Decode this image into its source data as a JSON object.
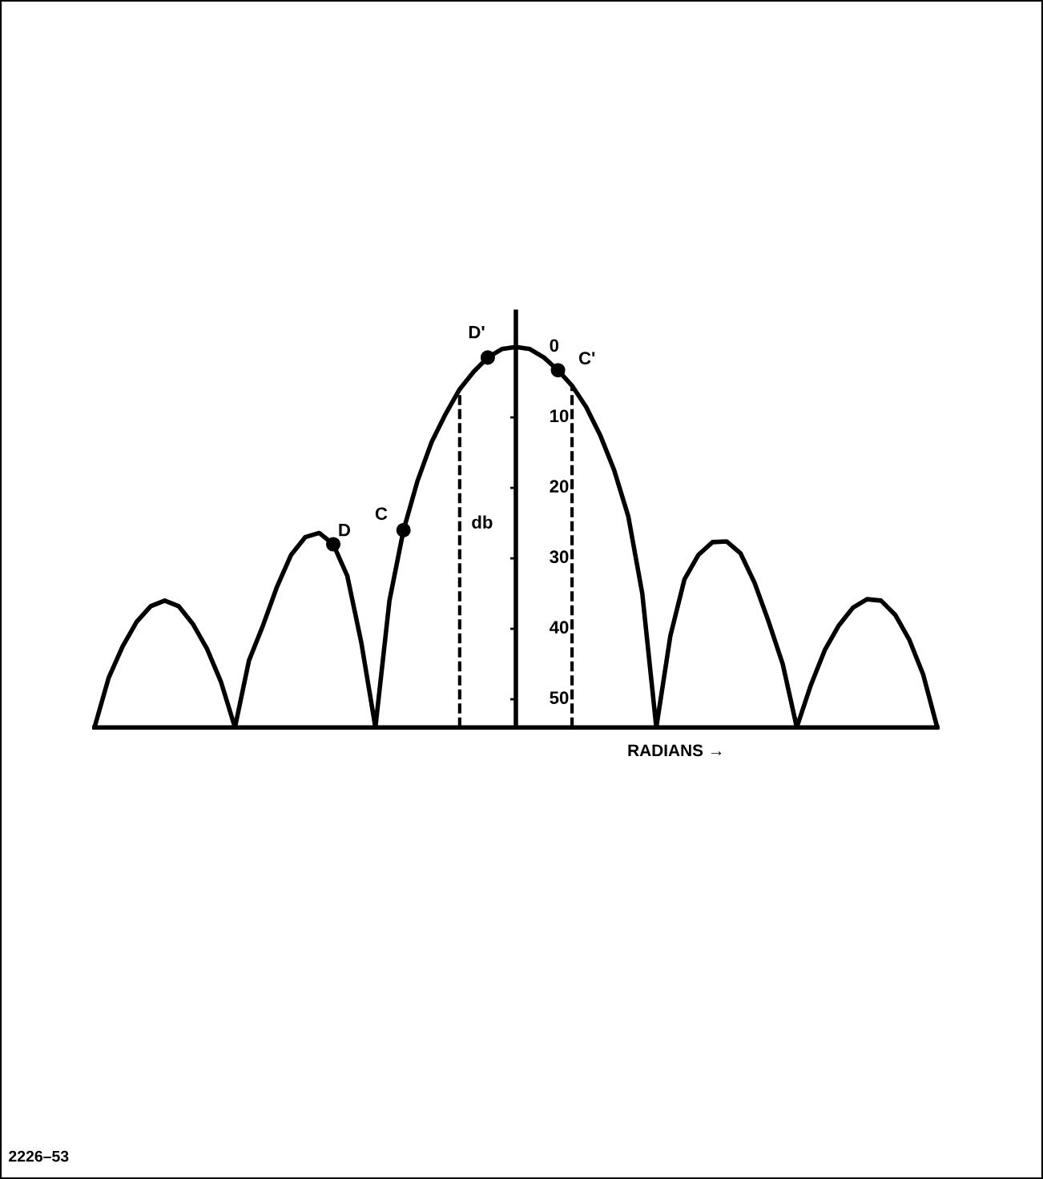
{
  "chart_data": {
    "type": "line",
    "xlabel": "RADIANS →",
    "ylabel": "db",
    "categories": [
      null,
      null,
      null,
      null,
      null,
      null,
      null,
      null,
      null,
      null,
      null,
      null,
      null,
      null,
      null,
      null,
      null,
      null,
      null,
      null,
      null,
      null,
      null,
      null,
      null,
      null,
      null,
      null,
      null,
      null,
      null,
      null,
      null,
      null,
      null,
      null,
      null,
      null,
      null,
      null,
      null,
      null,
      null,
      null,
      null,
      null,
      null,
      null,
      null,
      null,
      null,
      null,
      null,
      null,
      null,
      null,
      null,
      null,
      null,
      null,
      null
    ],
    "series": [
      {
        "color": "#000000",
        "values": [
          54,
          47,
          42.5,
          39,
          36.8,
          36,
          36.8,
          39.3,
          42.8,
          47.5,
          54,
          44.5,
          39.5,
          34,
          29.5,
          27,
          26.4,
          28,
          32.5,
          42,
          54,
          36,
          26,
          19,
          13.5,
          9.5,
          6,
          3.5,
          1.5,
          0.3,
          0,
          0.3,
          1.5,
          3.3,
          5.5,
          8.5,
          12.5,
          17.5,
          24,
          35,
          54,
          41,
          33,
          29.5,
          27.7,
          27.6,
          29.3,
          33.5,
          39,
          45,
          54,
          48,
          43,
          39.5,
          37,
          35.8,
          36,
          38,
          41.5,
          46.5,
          54
        ]
      },
      {
        "type": "scatter",
        "color": "#000000",
        "values": [
          null,
          null,
          null,
          null,
          null,
          null,
          null,
          null,
          null,
          null,
          null,
          null,
          null,
          null,
          null,
          null,
          null,
          28,
          null,
          null,
          null,
          null,
          26,
          null,
          null,
          null,
          null,
          null,
          1.5,
          null,
          null,
          null,
          null,
          3.3,
          null,
          null,
          null,
          null,
          null,
          null,
          null,
          null,
          null,
          null,
          null,
          null,
          null,
          null,
          null,
          null,
          null,
          null,
          null,
          null,
          null,
          null,
          null,
          null,
          null,
          null,
          null
        ],
        "value_labels": [
          null,
          null,
          null,
          null,
          null,
          null,
          null,
          null,
          null,
          null,
          null,
          null,
          null,
          null,
          null,
          null,
          null,
          "D",
          null,
          null,
          null,
          null,
          "C",
          null,
          null,
          null,
          null,
          null,
          "D'",
          null,
          null,
          null,
          null,
          "C'",
          null,
          null,
          null,
          null,
          null,
          null,
          null,
          null,
          null,
          null,
          null,
          null,
          null,
          null,
          null,
          null,
          null,
          null,
          null,
          null,
          null,
          null,
          null,
          null,
          null,
          null,
          null
        ]
      }
    ],
    "ylim": [
      54,
      -5
    ],
    "yticks": [
      0,
      10,
      20,
      30,
      40,
      50
    ],
    "annotations": [
      "2226–53"
    ]
  }
}
